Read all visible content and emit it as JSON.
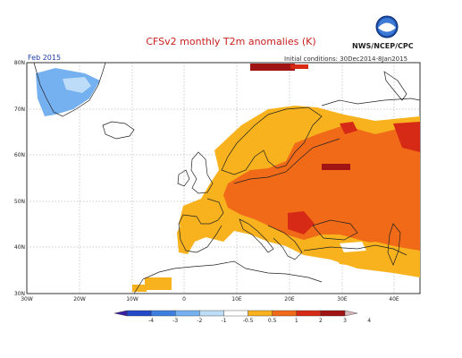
{
  "header": {
    "title": "CFSv2 monthly T2m anomalies (K)",
    "agency": "NWS/NCEP/CPC",
    "month": "Feb 2015",
    "initial_conditions": "Initial conditions: 30Dec2014-8Jan2015"
  },
  "map": {
    "lon_range": [
      -30,
      45
    ],
    "lat_range": [
      30,
      80
    ],
    "lon_ticks": [
      "30W",
      "20W",
      "10W",
      "0",
      "10E",
      "20E",
      "30E",
      "40E"
    ],
    "lat_ticks": [
      "30N",
      "40N",
      "50N",
      "60N",
      "70N",
      "80N"
    ],
    "logo": "noaa-logo-icon"
  },
  "colorbar": {
    "labels": [
      "-4",
      "-3",
      "-2",
      "-1",
      "-0.5",
      "0.5",
      "1",
      "2",
      "3",
      "4"
    ],
    "colors": [
      "#3a1fa3",
      "#2249c8",
      "#3d7fe0",
      "#75b1f0",
      "#bcdcf8",
      "#ffffff",
      "#f7b21e",
      "#f06a18",
      "#d62a16",
      "#a01414",
      "#d8b8b8"
    ]
  }
}
